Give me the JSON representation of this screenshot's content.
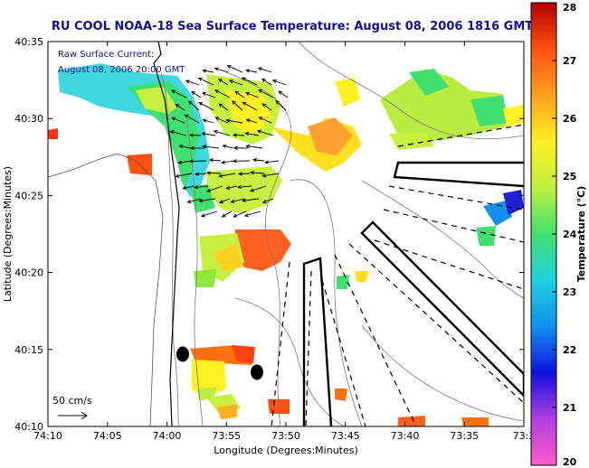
{
  "title": "RU COOL  NOAA-18  Sea Surface Temperature:  August 08, 2006 1816 GMT",
  "annotation": {
    "line1": "Raw Surface Current:",
    "line2": "August 08, 2006 20:00 GMT"
  },
  "axes": {
    "xlabel": "Longitude (Degrees:Minutes)",
    "ylabel": "Latitude (Degrees:Minutes)",
    "xticks": [
      "74:10",
      "74:05",
      "74:00",
      "73:55",
      "73:50",
      "73:45",
      "73:40",
      "73:35",
      "73:3"
    ],
    "yticks": [
      "40:35",
      "40:30",
      "40:25",
      "40:20",
      "40:15",
      "40:10"
    ]
  },
  "scale_bar": {
    "label": "50 cm/s"
  },
  "colorbar": {
    "label": "Temperature (°C)",
    "ticks": [
      "28",
      "27",
      "26",
      "25",
      "24",
      "23",
      "22",
      "21",
      "20"
    ],
    "range": [
      20,
      28
    ]
  },
  "colors": {
    "title": "#10109a",
    "land": "#ffffff",
    "vectors": "#000000"
  }
}
